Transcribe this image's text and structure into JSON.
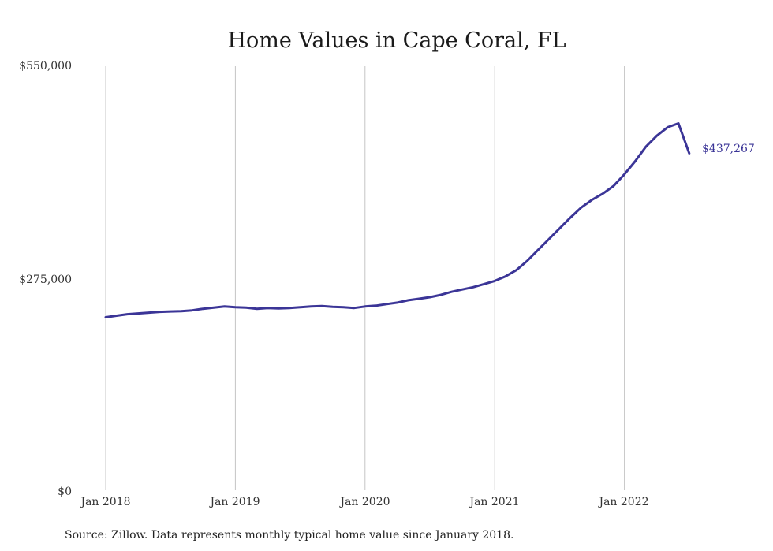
{
  "colors": {
    "series": "#3b3597",
    "grid": "#c4c4c4"
  },
  "chart_data": {
    "type": "line",
    "title": "Home Values in Cape Coral, FL",
    "xlabel": "",
    "ylabel": "",
    "x_ticks": [
      "Jan 2018",
      "Jan 2019",
      "Jan 2020",
      "Jan 2021",
      "Jan 2022"
    ],
    "y_ticks": [
      "$0",
      "$275,000",
      "$550,000"
    ],
    "ylim": [
      0,
      550000
    ],
    "grid": "vertical",
    "end_label": "$437,267",
    "series": [
      {
        "x": [
          "2018-01",
          "2018-02",
          "2018-03",
          "2018-04",
          "2018-05",
          "2018-06",
          "2018-07",
          "2018-08",
          "2018-09",
          "2018-10",
          "2018-11",
          "2018-12",
          "2019-01",
          "2019-02",
          "2019-03",
          "2019-04",
          "2019-05",
          "2019-06",
          "2019-07",
          "2019-08",
          "2019-09",
          "2019-10",
          "2019-11",
          "2019-12",
          "2020-01",
          "2020-02",
          "2020-03",
          "2020-04",
          "2020-05",
          "2020-06",
          "2020-07",
          "2020-08",
          "2020-09",
          "2020-10",
          "2020-11",
          "2020-12",
          "2021-01",
          "2021-02",
          "2021-03",
          "2021-04",
          "2021-05",
          "2021-06",
          "2021-07",
          "2021-08",
          "2021-09",
          "2021-10",
          "2021-11",
          "2021-12",
          "2022-01",
          "2022-02",
          "2022-03",
          "2022-04",
          "2022-05",
          "2022-06",
          "2022-07"
        ],
        "values": [
          225000,
          227000,
          229000,
          230000,
          231000,
          232000,
          232500,
          233000,
          234000,
          236000,
          237500,
          239000,
          238000,
          237500,
          236000,
          237000,
          236500,
          237000,
          238000,
          239000,
          239500,
          238500,
          238000,
          237000,
          239000,
          240000,
          242000,
          244000,
          247000,
          249000,
          251000,
          254000,
          258000,
          261000,
          264000,
          268000,
          272000,
          278000,
          286000,
          298000,
          312000,
          326000,
          340000,
          354000,
          367000,
          377000,
          385000,
          395000,
          410000,
          427000,
          446000,
          460000,
          471000,
          476000,
          437267
        ]
      }
    ]
  },
  "source_note": "Source: Zillow. Data represents monthly typical home value since January 2018."
}
